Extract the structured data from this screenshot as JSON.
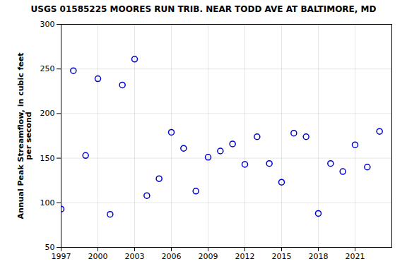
{
  "chart_data": {
    "type": "scatter",
    "title": "USGS 01585225 MOORES RUN TRIB. NEAR TODD AVE AT BALTIMORE, MD",
    "ylabel": "Annual Peak Streamflow, in cubic feet\nper second",
    "x": [
      1997,
      1998,
      1999,
      2000,
      2001,
      2002,
      2003,
      2004,
      2005,
      2006,
      2007,
      2008,
      2009,
      2010,
      2011,
      2012,
      2013,
      2014,
      2015,
      2016,
      2017,
      2018,
      2019,
      2020,
      2021,
      2022,
      2023
    ],
    "values": [
      93,
      248,
      153,
      239,
      87,
      232,
      261,
      108,
      127,
      179,
      161,
      113,
      151,
      158,
      166,
      143,
      174,
      144,
      123,
      178,
      174,
      88,
      144,
      135,
      165,
      140,
      180
    ],
    "color": "#0000cc",
    "marker": "circle",
    "xlim": [
      1997,
      2024
    ],
    "xticks": [
      1997,
      2000,
      2003,
      2006,
      2009,
      2012,
      2015,
      2018,
      2021
    ],
    "ylim": [
      50,
      300
    ],
    "yticks": [
      50,
      100,
      150,
      200,
      250,
      300
    ],
    "grid": true
  }
}
